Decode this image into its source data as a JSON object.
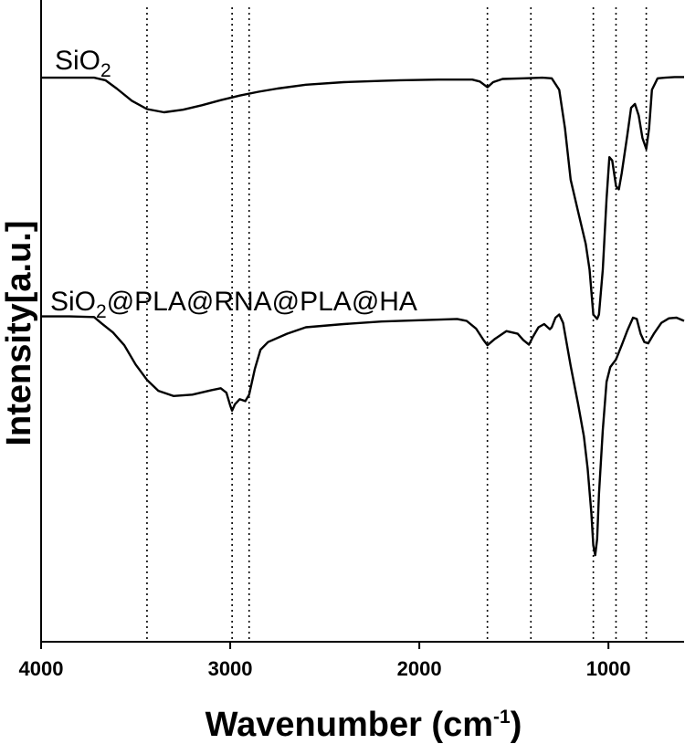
{
  "chart_data": {
    "type": "line",
    "xlabel": "Wavenumber (cm",
    "xlabel_sup": "-1",
    "xlabel_end": ")",
    "ylabel": "Intensity[a.u.]",
    "xlim": [
      4000,
      600
    ],
    "x_reversed": true,
    "xticks": [
      4000,
      3000,
      2000,
      1000
    ],
    "xtick_labels": [
      "4000",
      "3000",
      "2000",
      "1000"
    ],
    "y_axis_ticks": false,
    "grid": false,
    "ylim": [
      0,
      1
    ],
    "reference_lines": [
      3440,
      2990,
      2900,
      1640,
      1410,
      1080,
      960,
      800
    ],
    "series": [
      {
        "label_parts": [
          "SiO",
          "2",
          ""
        ],
        "color": "#000000",
        "points": [
          [
            4000,
            0.879
          ],
          [
            3850,
            0.879
          ],
          [
            3720,
            0.879
          ],
          [
            3660,
            0.875
          ],
          [
            3600,
            0.862
          ],
          [
            3520,
            0.843
          ],
          [
            3440,
            0.83
          ],
          [
            3350,
            0.825
          ],
          [
            3250,
            0.829
          ],
          [
            3150,
            0.836
          ],
          [
            3050,
            0.844
          ],
          [
            2950,
            0.851
          ],
          [
            2850,
            0.857
          ],
          [
            2750,
            0.862
          ],
          [
            2600,
            0.868
          ],
          [
            2400,
            0.872
          ],
          [
            2200,
            0.874
          ],
          [
            2100,
            0.875
          ],
          [
            1900,
            0.876
          ],
          [
            1720,
            0.876
          ],
          [
            1680,
            0.873
          ],
          [
            1640,
            0.864
          ],
          [
            1610,
            0.872
          ],
          [
            1560,
            0.877
          ],
          [
            1450,
            0.878
          ],
          [
            1350,
            0.879
          ],
          [
            1300,
            0.878
          ],
          [
            1260,
            0.86
          ],
          [
            1230,
            0.8
          ],
          [
            1200,
            0.72
          ],
          [
            1160,
            0.67
          ],
          [
            1120,
            0.62
          ],
          [
            1100,
            0.58
          ],
          [
            1080,
            0.51
          ],
          [
            1060,
            0.503
          ],
          [
            1050,
            0.51
          ],
          [
            1030,
            0.58
          ],
          [
            1010,
            0.69
          ],
          [
            995,
            0.755
          ],
          [
            980,
            0.75
          ],
          [
            960,
            0.71
          ],
          [
            945,
            0.705
          ],
          [
            930,
            0.73
          ],
          [
            900,
            0.79
          ],
          [
            880,
            0.832
          ],
          [
            860,
            0.838
          ],
          [
            840,
            0.82
          ],
          [
            820,
            0.785
          ],
          [
            800,
            0.768
          ],
          [
            785,
            0.8
          ],
          [
            770,
            0.86
          ],
          [
            740,
            0.878
          ],
          [
            700,
            0.879
          ],
          [
            650,
            0.88
          ],
          [
            600,
            0.88
          ]
        ]
      },
      {
        "label_parts": [
          "SiO",
          "2",
          "@PLA@RNA@PLA@HA"
        ],
        "color": "#000000",
        "points": [
          [
            4000,
            0.507
          ],
          [
            3850,
            0.507
          ],
          [
            3720,
            0.506
          ],
          [
            3680,
            0.496
          ],
          [
            3620,
            0.482
          ],
          [
            3560,
            0.462
          ],
          [
            3500,
            0.432
          ],
          [
            3440,
            0.408
          ],
          [
            3380,
            0.391
          ],
          [
            3300,
            0.383
          ],
          [
            3200,
            0.385
          ],
          [
            3100,
            0.392
          ],
          [
            3050,
            0.395
          ],
          [
            3020,
            0.388
          ],
          [
            3000,
            0.368
          ],
          [
            2990,
            0.36
          ],
          [
            2975,
            0.37
          ],
          [
            2950,
            0.378
          ],
          [
            2920,
            0.375
          ],
          [
            2900,
            0.385
          ],
          [
            2870,
            0.425
          ],
          [
            2840,
            0.455
          ],
          [
            2800,
            0.467
          ],
          [
            2700,
            0.48
          ],
          [
            2600,
            0.49
          ],
          [
            2400,
            0.495
          ],
          [
            2200,
            0.499
          ],
          [
            2000,
            0.501
          ],
          [
            1800,
            0.503
          ],
          [
            1750,
            0.5
          ],
          [
            1700,
            0.488
          ],
          [
            1660,
            0.47
          ],
          [
            1640,
            0.462
          ],
          [
            1600,
            0.472
          ],
          [
            1540,
            0.484
          ],
          [
            1480,
            0.48
          ],
          [
            1450,
            0.47
          ],
          [
            1420,
            0.463
          ],
          [
            1400,
            0.475
          ],
          [
            1370,
            0.49
          ],
          [
            1340,
            0.495
          ],
          [
            1310,
            0.487
          ],
          [
            1300,
            0.49
          ],
          [
            1280,
            0.505
          ],
          [
            1260,
            0.51
          ],
          [
            1240,
            0.497
          ],
          [
            1200,
            0.43
          ],
          [
            1160,
            0.37
          ],
          [
            1130,
            0.32
          ],
          [
            1110,
            0.27
          ],
          [
            1090,
            0.2
          ],
          [
            1080,
            0.15
          ],
          [
            1070,
            0.135
          ],
          [
            1060,
            0.16
          ],
          [
            1050,
            0.23
          ],
          [
            1030,
            0.33
          ],
          [
            1010,
            0.405
          ],
          [
            990,
            0.428
          ],
          [
            960,
            0.44
          ],
          [
            930,
            0.462
          ],
          [
            900,
            0.485
          ],
          [
            870,
            0.505
          ],
          [
            850,
            0.503
          ],
          [
            830,
            0.48
          ],
          [
            810,
            0.467
          ],
          [
            790,
            0.465
          ],
          [
            760,
            0.48
          ],
          [
            720,
            0.497
          ],
          [
            680,
            0.504
          ],
          [
            640,
            0.505
          ],
          [
            600,
            0.5
          ]
        ]
      }
    ]
  }
}
